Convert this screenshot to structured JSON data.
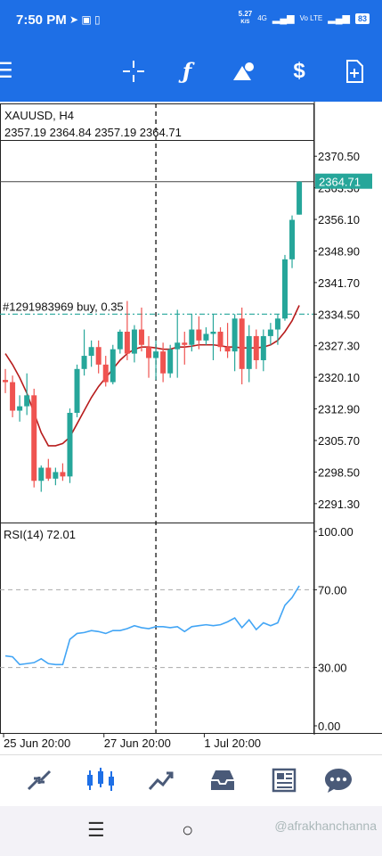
{
  "status": {
    "time": "7:50 PM",
    "net_speed": "5.27",
    "net_unit": "K/S",
    "network": "4G",
    "volte": "Vo LTE",
    "battery": "83",
    "app_icons": "➤ ▣ ▯"
  },
  "toolbar": {
    "menu_icon": "menu-icon",
    "crosshair_icon": "crosshair-icon",
    "indicators_icon": "function-icon",
    "objects_icon": "shapes-icon",
    "symbol_icon": "dollar-icon",
    "template_icon": "add-document-icon"
  },
  "chart": {
    "symbol": "XAUUSD, H4",
    "ohlc": "2357.19 2364.84 2357.19 2364.71",
    "current_price": "2364.71",
    "order_label": "#1291983969 buy, 0.35",
    "price_ticks": [
      "2370.50",
      "2363.30",
      "2356.10",
      "2348.90",
      "2341.70",
      "2334.50",
      "2327.30",
      "2320.10",
      "2312.90",
      "2305.70",
      "2298.50",
      "2291.30"
    ],
    "rsi_label": "RSI(14) 72.01",
    "rsi_ticks": [
      "100.00",
      "70.00",
      "30.00",
      "0.00"
    ],
    "time_ticks": [
      "25 Jun 20:00",
      "27 Jun 20:00",
      "1 Jul 20:00"
    ],
    "colors": {
      "bull": "#26a69a",
      "bear": "#ef5350",
      "ma": "#b71c1c",
      "rsi": "#42a5f5",
      "order_line": "#26a69a",
      "price_tag": "#26a69a"
    }
  },
  "chart_data": {
    "type": "candlestick",
    "title": "XAUUSD, H4",
    "price_range": [
      2287.0,
      2374.0
    ],
    "candles": [
      [
        2319.5,
        2322.0,
        2316.5,
        2319.0
      ],
      [
        2319.0,
        2320.5,
        2311.0,
        2312.5
      ],
      [
        2312.5,
        2316.0,
        2310.0,
        2313.5
      ],
      [
        2313.5,
        2321.0,
        2311.5,
        2316.0
      ],
      [
        2316.0,
        2317.5,
        2295.0,
        2296.5
      ],
      [
        2296.5,
        2300.0,
        2294.0,
        2299.5
      ],
      [
        2299.5,
        2301.5,
        2296.5,
        2297.0
      ],
      [
        2297.0,
        2299.5,
        2295.5,
        2298.5
      ],
      [
        2298.5,
        2300.5,
        2296.5,
        2297.5
      ],
      [
        2297.5,
        2313.0,
        2296.0,
        2312.0
      ],
      [
        2312.0,
        2323.0,
        2311.0,
        2322.0
      ],
      [
        2322.0,
        2331.0,
        2320.5,
        2325.0
      ],
      [
        2325.0,
        2328.5,
        2322.5,
        2327.0
      ],
      [
        2327.0,
        2328.5,
        2321.0,
        2323.0
      ],
      [
        2323.0,
        2325.0,
        2318.0,
        2319.0
      ],
      [
        2319.0,
        2327.5,
        2318.5,
        2326.5
      ],
      [
        2326.5,
        2331.0,
        2325.5,
        2330.5
      ],
      [
        2330.5,
        2337.5,
        2324.0,
        2325.5
      ],
      [
        2325.5,
        2332.0,
        2323.5,
        2331.0
      ],
      [
        2331.0,
        2336.0,
        2326.0,
        2327.5
      ],
      [
        2327.0,
        2329.5,
        2320.0,
        2324.5
      ],
      [
        2324.5,
        2328.5,
        2319.5,
        2326.0
      ],
      [
        2326.0,
        2328.0,
        2319.0,
        2321.0
      ],
      [
        2321.0,
        2327.5,
        2320.0,
        2326.5
      ],
      [
        2326.5,
        2335.5,
        2320.0,
        2328.0
      ],
      [
        2328.0,
        2330.5,
        2323.0,
        2327.5
      ],
      [
        2327.5,
        2334.5,
        2326.0,
        2331.0
      ],
      [
        2331.0,
        2334.0,
        2326.5,
        2328.5
      ],
      [
        2328.5,
        2331.5,
        2327.5,
        2330.0
      ],
      [
        2330.0,
        2334.5,
        2324.0,
        2330.5
      ],
      [
        2330.5,
        2331.5,
        2326.0,
        2327.0
      ],
      [
        2327.0,
        2332.5,
        2324.5,
        2326.0
      ],
      [
        2326.0,
        2334.5,
        2321.5,
        2333.5
      ],
      [
        2333.5,
        2336.0,
        2318.5,
        2322.0
      ],
      [
        2322.0,
        2332.0,
        2319.0,
        2329.5
      ],
      [
        2329.5,
        2331.0,
        2322.0,
        2324.0
      ],
      [
        2324.0,
        2331.0,
        2321.5,
        2329.5
      ],
      [
        2329.5,
        2332.5,
        2327.5,
        2331.0
      ],
      [
        2331.0,
        2334.5,
        2327.5,
        2333.5
      ],
      [
        2333.5,
        2348.0,
        2333.0,
        2347.0
      ],
      [
        2347.0,
        2357.0,
        2345.0,
        2356.0
      ],
      [
        2357.19,
        2364.84,
        2357.19,
        2364.71
      ]
    ],
    "ma": [
      2325.5,
      2323.0,
      2320.0,
      2316.5,
      2312.0,
      2307.5,
      2304.5,
      2304.5,
      2305.0,
      2306.5,
      2309.5,
      2312.5,
      2315.5,
      2318.0,
      2320.0,
      2322.0,
      2324.0,
      2325.5,
      2326.5,
      2327.0,
      2327.0,
      2326.8,
      2326.5,
      2326.5,
      2327.0,
      2327.0,
      2327.2,
      2327.5,
      2327.5,
      2327.5,
      2327.3,
      2327.0,
      2327.0,
      2326.8,
      2326.8,
      2326.8,
      2327.0,
      2327.5,
      2328.5,
      2330.5,
      2333.0,
      2336.5
    ],
    "rsi": [
      36.0,
      35.5,
      31.5,
      32.0,
      32.5,
      34.5,
      32.0,
      31.5,
      31.5,
      44.5,
      47.5,
      48.0,
      49.0,
      48.5,
      47.5,
      49.0,
      49.0,
      50.0,
      51.5,
      50.5,
      50.0,
      51.0,
      51.0,
      50.5,
      51.0,
      48.5,
      51.0,
      51.5,
      52.0,
      51.5,
      52.0,
      53.5,
      55.5,
      50.5,
      54.5,
      49.5,
      53.0,
      51.5,
      53.0,
      62.0,
      66.0,
      72.01
    ],
    "rsi_range": [
      0,
      100
    ],
    "rsi_levels": [
      70,
      30
    ],
    "order_price": 2334.5,
    "crosshair_candle_index": 21
  },
  "bottom_nav": {
    "items": [
      "quotes-icon",
      "chart-icon",
      "trade-icon",
      "history-icon",
      "news-icon",
      "messages-icon"
    ],
    "active": 1
  },
  "system_nav": {
    "recents_icon": "recents-icon",
    "home_icon": "home-icon"
  },
  "watermark": "@afrakhanchanna"
}
